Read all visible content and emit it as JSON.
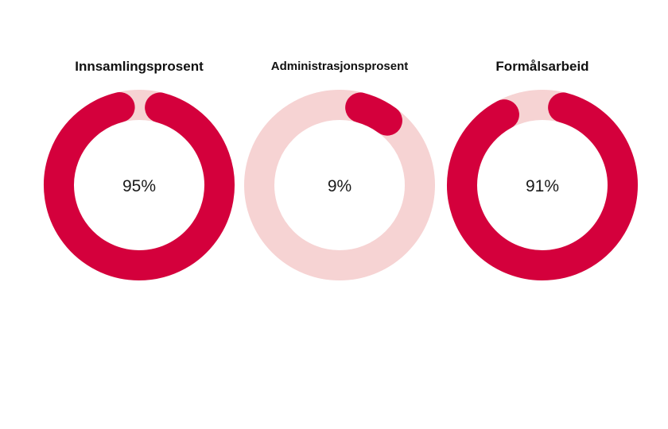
{
  "colors": {
    "filled": "#d4003c",
    "track": "#f6d3d3"
  },
  "chart_data": [
    {
      "type": "donut",
      "title": "Innsamlingsprosent",
      "value": 95,
      "value_label": "95%"
    },
    {
      "type": "donut",
      "title": "Administrasjonsprosent",
      "value": 9,
      "value_label": "9%"
    },
    {
      "type": "donut",
      "title": "Formålsarbeid",
      "value": 91,
      "value_label": "91%"
    }
  ]
}
